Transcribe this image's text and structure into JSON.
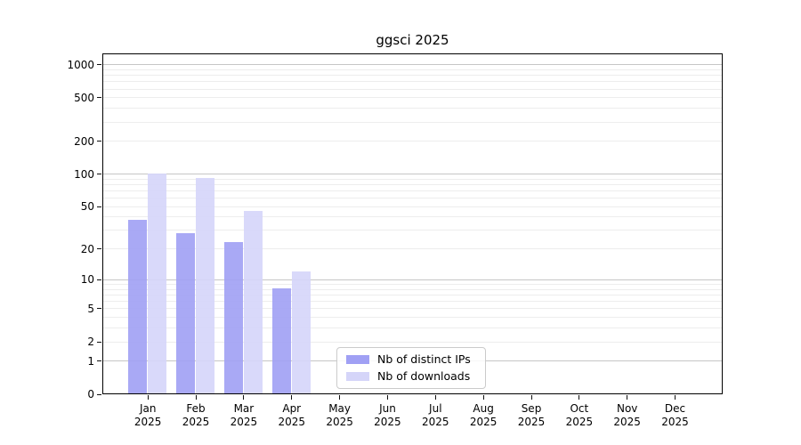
{
  "title": "ggsci 2025",
  "legend": {
    "items": [
      {
        "label": "Nb of distinct IPs",
        "color": "#a0a0f4"
      },
      {
        "label": "Nb of downloads",
        "color": "#d5d5f9"
      }
    ]
  },
  "axes": {
    "y_tick_labels": [
      "0",
      "1",
      "2",
      "5",
      "10",
      "20",
      "50",
      "100",
      "200",
      "500",
      "1000"
    ],
    "x_tick_year": "2025",
    "x_tick_months": [
      "Jan",
      "Feb",
      "Mar",
      "Apr",
      "May",
      "Jun",
      "Jul",
      "Aug",
      "Sep",
      "Oct",
      "Nov",
      "Dec"
    ]
  },
  "colors": {
    "bar_dark": "#a0a0f4",
    "bar_light": "#d5d5f9",
    "grid_major": "#c6c6c6",
    "grid_minor": "#ededed",
    "spine": "#000000"
  },
  "chart_data": {
    "type": "bar",
    "title": "ggsci 2025",
    "categories": [
      "Jan 2025",
      "Feb 2025",
      "Mar 2025",
      "Apr 2025",
      "May 2025",
      "Jun 2025",
      "Jul 2025",
      "Aug 2025",
      "Sep 2025",
      "Oct 2025",
      "Nov 2025",
      "Dec 2025"
    ],
    "series": [
      {
        "name": "Nb of distinct IPs",
        "color": "#a0a0f4",
        "values": [
          37,
          28,
          23,
          8,
          null,
          null,
          null,
          null,
          null,
          null,
          null,
          null
        ]
      },
      {
        "name": "Nb of downloads",
        "color": "#d5d5f9",
        "values": [
          100,
          90,
          45,
          12,
          null,
          null,
          null,
          null,
          null,
          null,
          null,
          null
        ]
      }
    ],
    "y_scale": "log1p",
    "y_ticks": [
      0,
      1,
      2,
      5,
      10,
      20,
      50,
      100,
      200,
      500,
      1000
    ],
    "y_minor_ticks": [
      2,
      3,
      4,
      5,
      6,
      7,
      8,
      9,
      20,
      30,
      40,
      50,
      60,
      70,
      80,
      90,
      200,
      300,
      400,
      500,
      600,
      700,
      800,
      900
    ],
    "ylim": [
      0,
      1270
    ],
    "xlabel": "",
    "ylabel": "",
    "grid": true,
    "legend_position": "inside lower-center"
  }
}
